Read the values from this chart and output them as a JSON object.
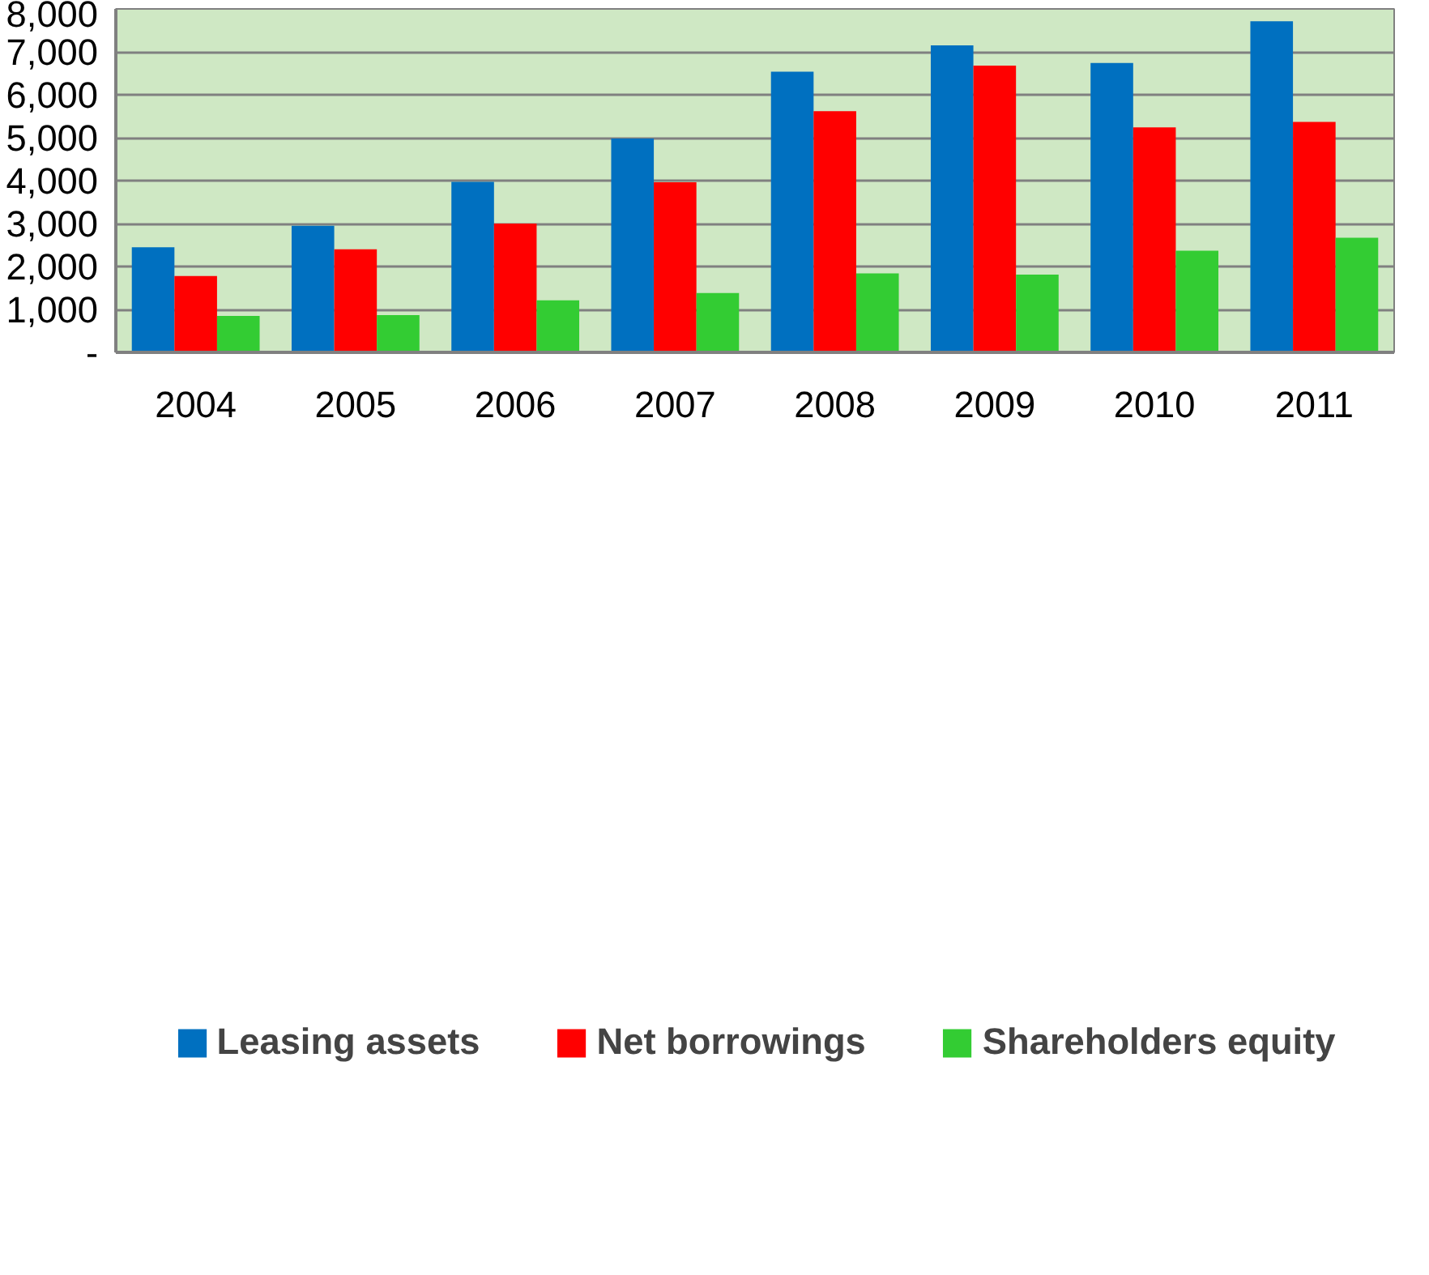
{
  "chart_data": {
    "type": "bar",
    "categories": [
      "2004",
      "2005",
      "2006",
      "2007",
      "2008",
      "2009",
      "2010",
      "2011"
    ],
    "series": [
      {
        "name": "Leasing assets",
        "color": "#0070c0",
        "values": [
          2450,
          2950,
          3970,
          4980,
          6540,
          7150,
          6740,
          7710
        ]
      },
      {
        "name": "Net borrowings",
        "color": "#ff0000",
        "values": [
          1780,
          2400,
          3000,
          3960,
          5620,
          6680,
          5240,
          5370
        ]
      },
      {
        "name": "Shareholders equity",
        "color": "#33cc33",
        "values": [
          850,
          870,
          1210,
          1380,
          1840,
          1810,
          2370,
          2670
        ]
      }
    ],
    "ylim": [
      0,
      8000
    ],
    "yticks": [
      {
        "value": 0,
        "label": "-"
      },
      {
        "value": 1000,
        "label": "1,000"
      },
      {
        "value": 2000,
        "label": "2,000"
      },
      {
        "value": 3000,
        "label": "3,000"
      },
      {
        "value": 4000,
        "label": "4,000"
      },
      {
        "value": 5000,
        "label": "5,000"
      },
      {
        "value": 6000,
        "label": "6,000"
      },
      {
        "value": 7000,
        "label": "7,000"
      },
      {
        "value": 8000,
        "label": "8,000"
      }
    ],
    "grid": "y",
    "legend": "bottom"
  }
}
